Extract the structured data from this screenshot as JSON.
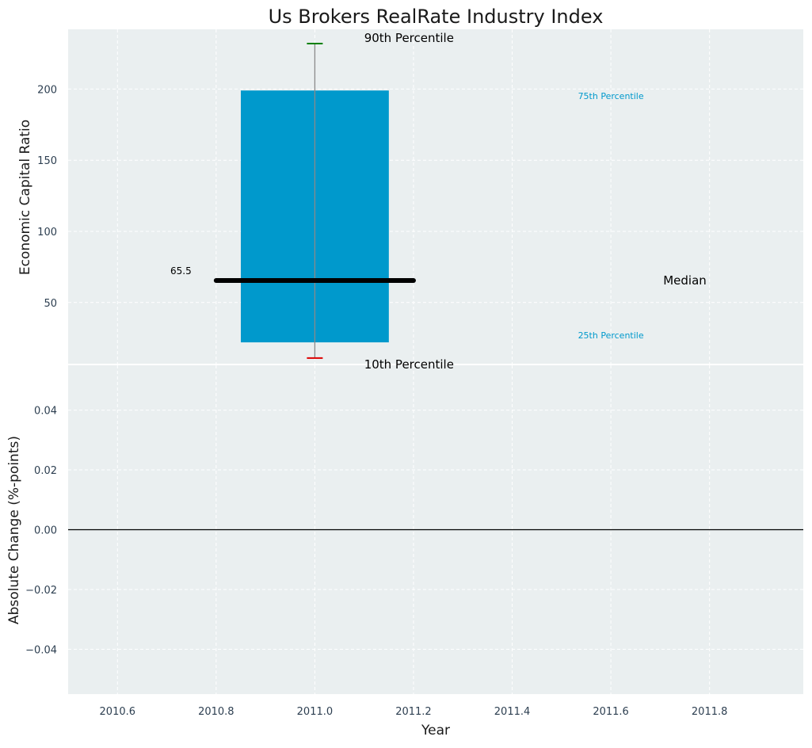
{
  "chart_data": [
    {
      "type": "box",
      "title": "Us Brokers RealRate Industry Index",
      "xlabel": "",
      "ylabel": "Economic Capital Ratio",
      "xlim": [
        2010.5,
        2011.99
      ],
      "ylim": [
        7,
        242
      ],
      "yticks": [
        50,
        100,
        150,
        200
      ],
      "grid": true,
      "x": 2011.0,
      "p10": 11,
      "p25": 22,
      "median": 65.5,
      "p75": 199,
      "p90": 232,
      "median_label": "65.5",
      "annotations": {
        "p90": "90th Percentile",
        "p75": "75th Percentile",
        "median": "Median",
        "p25": "25th Percentile",
        "p10": "10th Percentile"
      }
    },
    {
      "type": "line",
      "title": "",
      "xlabel": "Year",
      "ylabel": "Absolute Change (%-points)",
      "xlim": [
        2010.5,
        2011.99
      ],
      "ylim": [
        -0.055,
        0.055
      ],
      "xticks": [
        "2010.6",
        "2010.8",
        "2011.0",
        "2011.2",
        "2011.4",
        "2011.6",
        "2011.8"
      ],
      "yticks": [
        "−0.04",
        "−0.02",
        "0.00",
        "0.02",
        "0.04"
      ],
      "zero_line": 0,
      "grid": true,
      "series": []
    }
  ],
  "colors": {
    "panel_bg": "#eaeff0",
    "box": "#0099cc",
    "median": "#000000",
    "whisker": "#8a8a8a",
    "p90_cap": "#008000",
    "p10_cap": "#dd0000",
    "pct_label": "#0099cc",
    "tick_text": "#2c3e50"
  }
}
